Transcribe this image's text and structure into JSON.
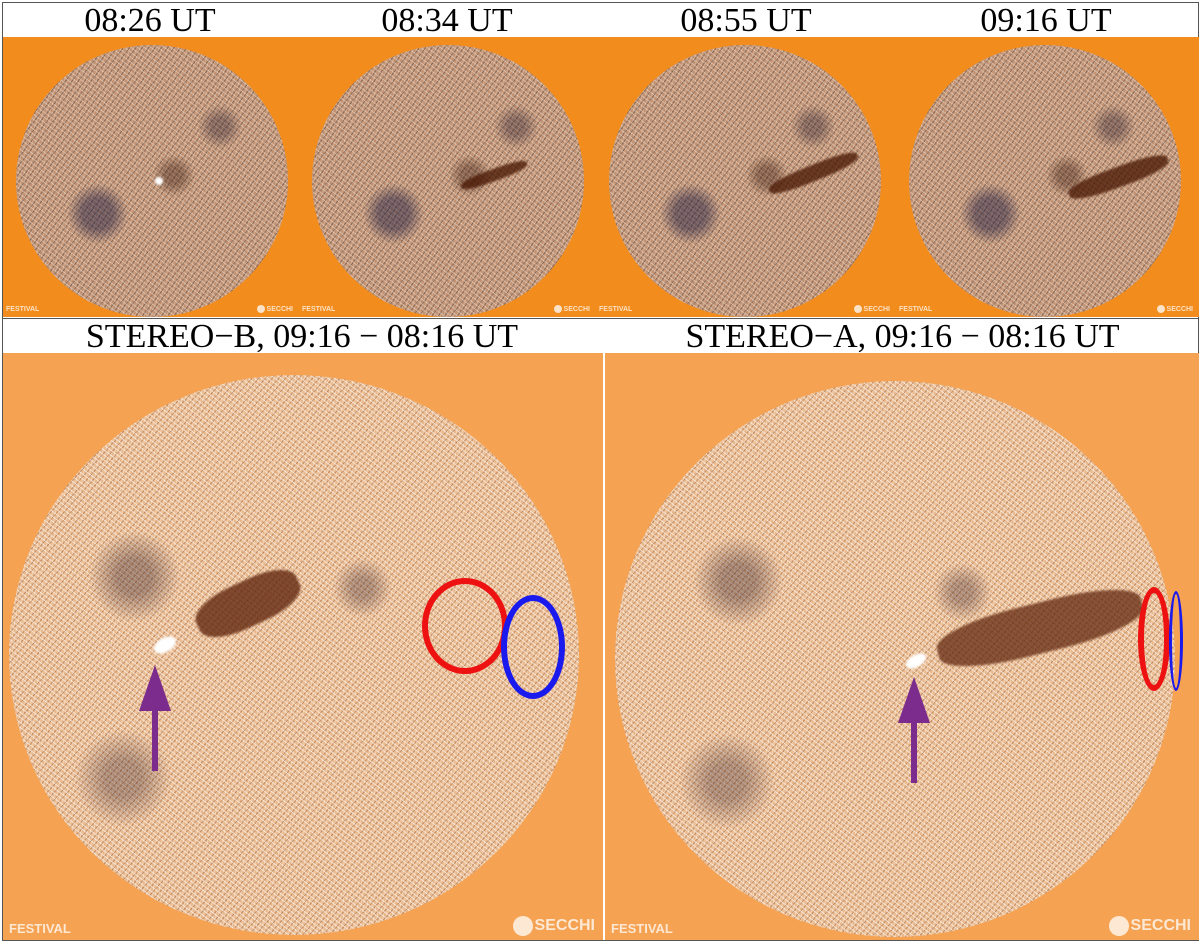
{
  "top_row": {
    "frames": [
      {
        "time": "08:26 UT"
      },
      {
        "time": "08:34 UT"
      },
      {
        "time": "08:55 UT"
      },
      {
        "time": "09:16 UT"
      }
    ]
  },
  "bottom_row": {
    "left": {
      "title": "STEREO−B, 09:16 − 08:16 UT"
    },
    "right": {
      "title": "STEREO−A, 09:16 − 08:16 UT"
    }
  },
  "watermarks": {
    "festival": "FESTIVAL",
    "secchi": "SECCHI"
  },
  "colors": {
    "background_small": "#f28c1c",
    "background_large": "#f5a252",
    "ring_red": "#ee1111",
    "ring_blue": "#1a1aee",
    "arrow": "#7b2c8c"
  }
}
